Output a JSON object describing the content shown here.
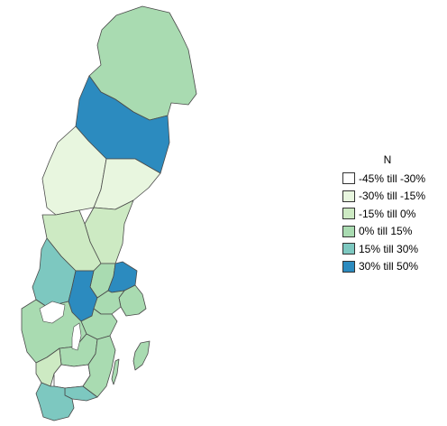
{
  "map": {
    "country": "Sweden",
    "legend": {
      "title": "N",
      "classes": [
        {
          "label": "-45% till -30%",
          "color": "#ffffff"
        },
        {
          "label": "-30% till -15%",
          "color": "#e8f6df"
        },
        {
          "label": "-15% till 0%",
          "color": "#cdeac3"
        },
        {
          "label": "0% till 15%",
          "color": "#a9dbb1"
        },
        {
          "label": "15% till 30%",
          "color": "#7dc8c0"
        },
        {
          "label": "30% till 50%",
          "color": "#2c8bbf"
        }
      ]
    },
    "regions": [
      {
        "name": "Norrbotten",
        "class": 3
      },
      {
        "name": "Västerbotten",
        "class": 5
      },
      {
        "name": "Jämtland",
        "class": 1
      },
      {
        "name": "Västernorrland",
        "class": 1
      },
      {
        "name": "Gävleborg",
        "class": 2
      },
      {
        "name": "Dalarna",
        "class": 2
      },
      {
        "name": "Värmland",
        "class": 4
      },
      {
        "name": "Västmanland",
        "class": 3
      },
      {
        "name": "Uppsala",
        "class": 5
      },
      {
        "name": "Örebro",
        "class": 5
      },
      {
        "name": "Stockholm",
        "class": 3
      },
      {
        "name": "Södermanland",
        "class": 3
      },
      {
        "name": "Östergötland",
        "class": 3
      },
      {
        "name": "Västra Götaland",
        "class": 3
      },
      {
        "name": "Jönköping",
        "class": 3
      },
      {
        "name": "Halland",
        "class": 2
      },
      {
        "name": "Kronoberg",
        "class": 0
      },
      {
        "name": "Kalmar",
        "class": 3
      },
      {
        "name": "Blekinge",
        "class": 4
      },
      {
        "name": "Skåne",
        "class": 4
      },
      {
        "name": "Gotland",
        "class": 3
      }
    ]
  }
}
